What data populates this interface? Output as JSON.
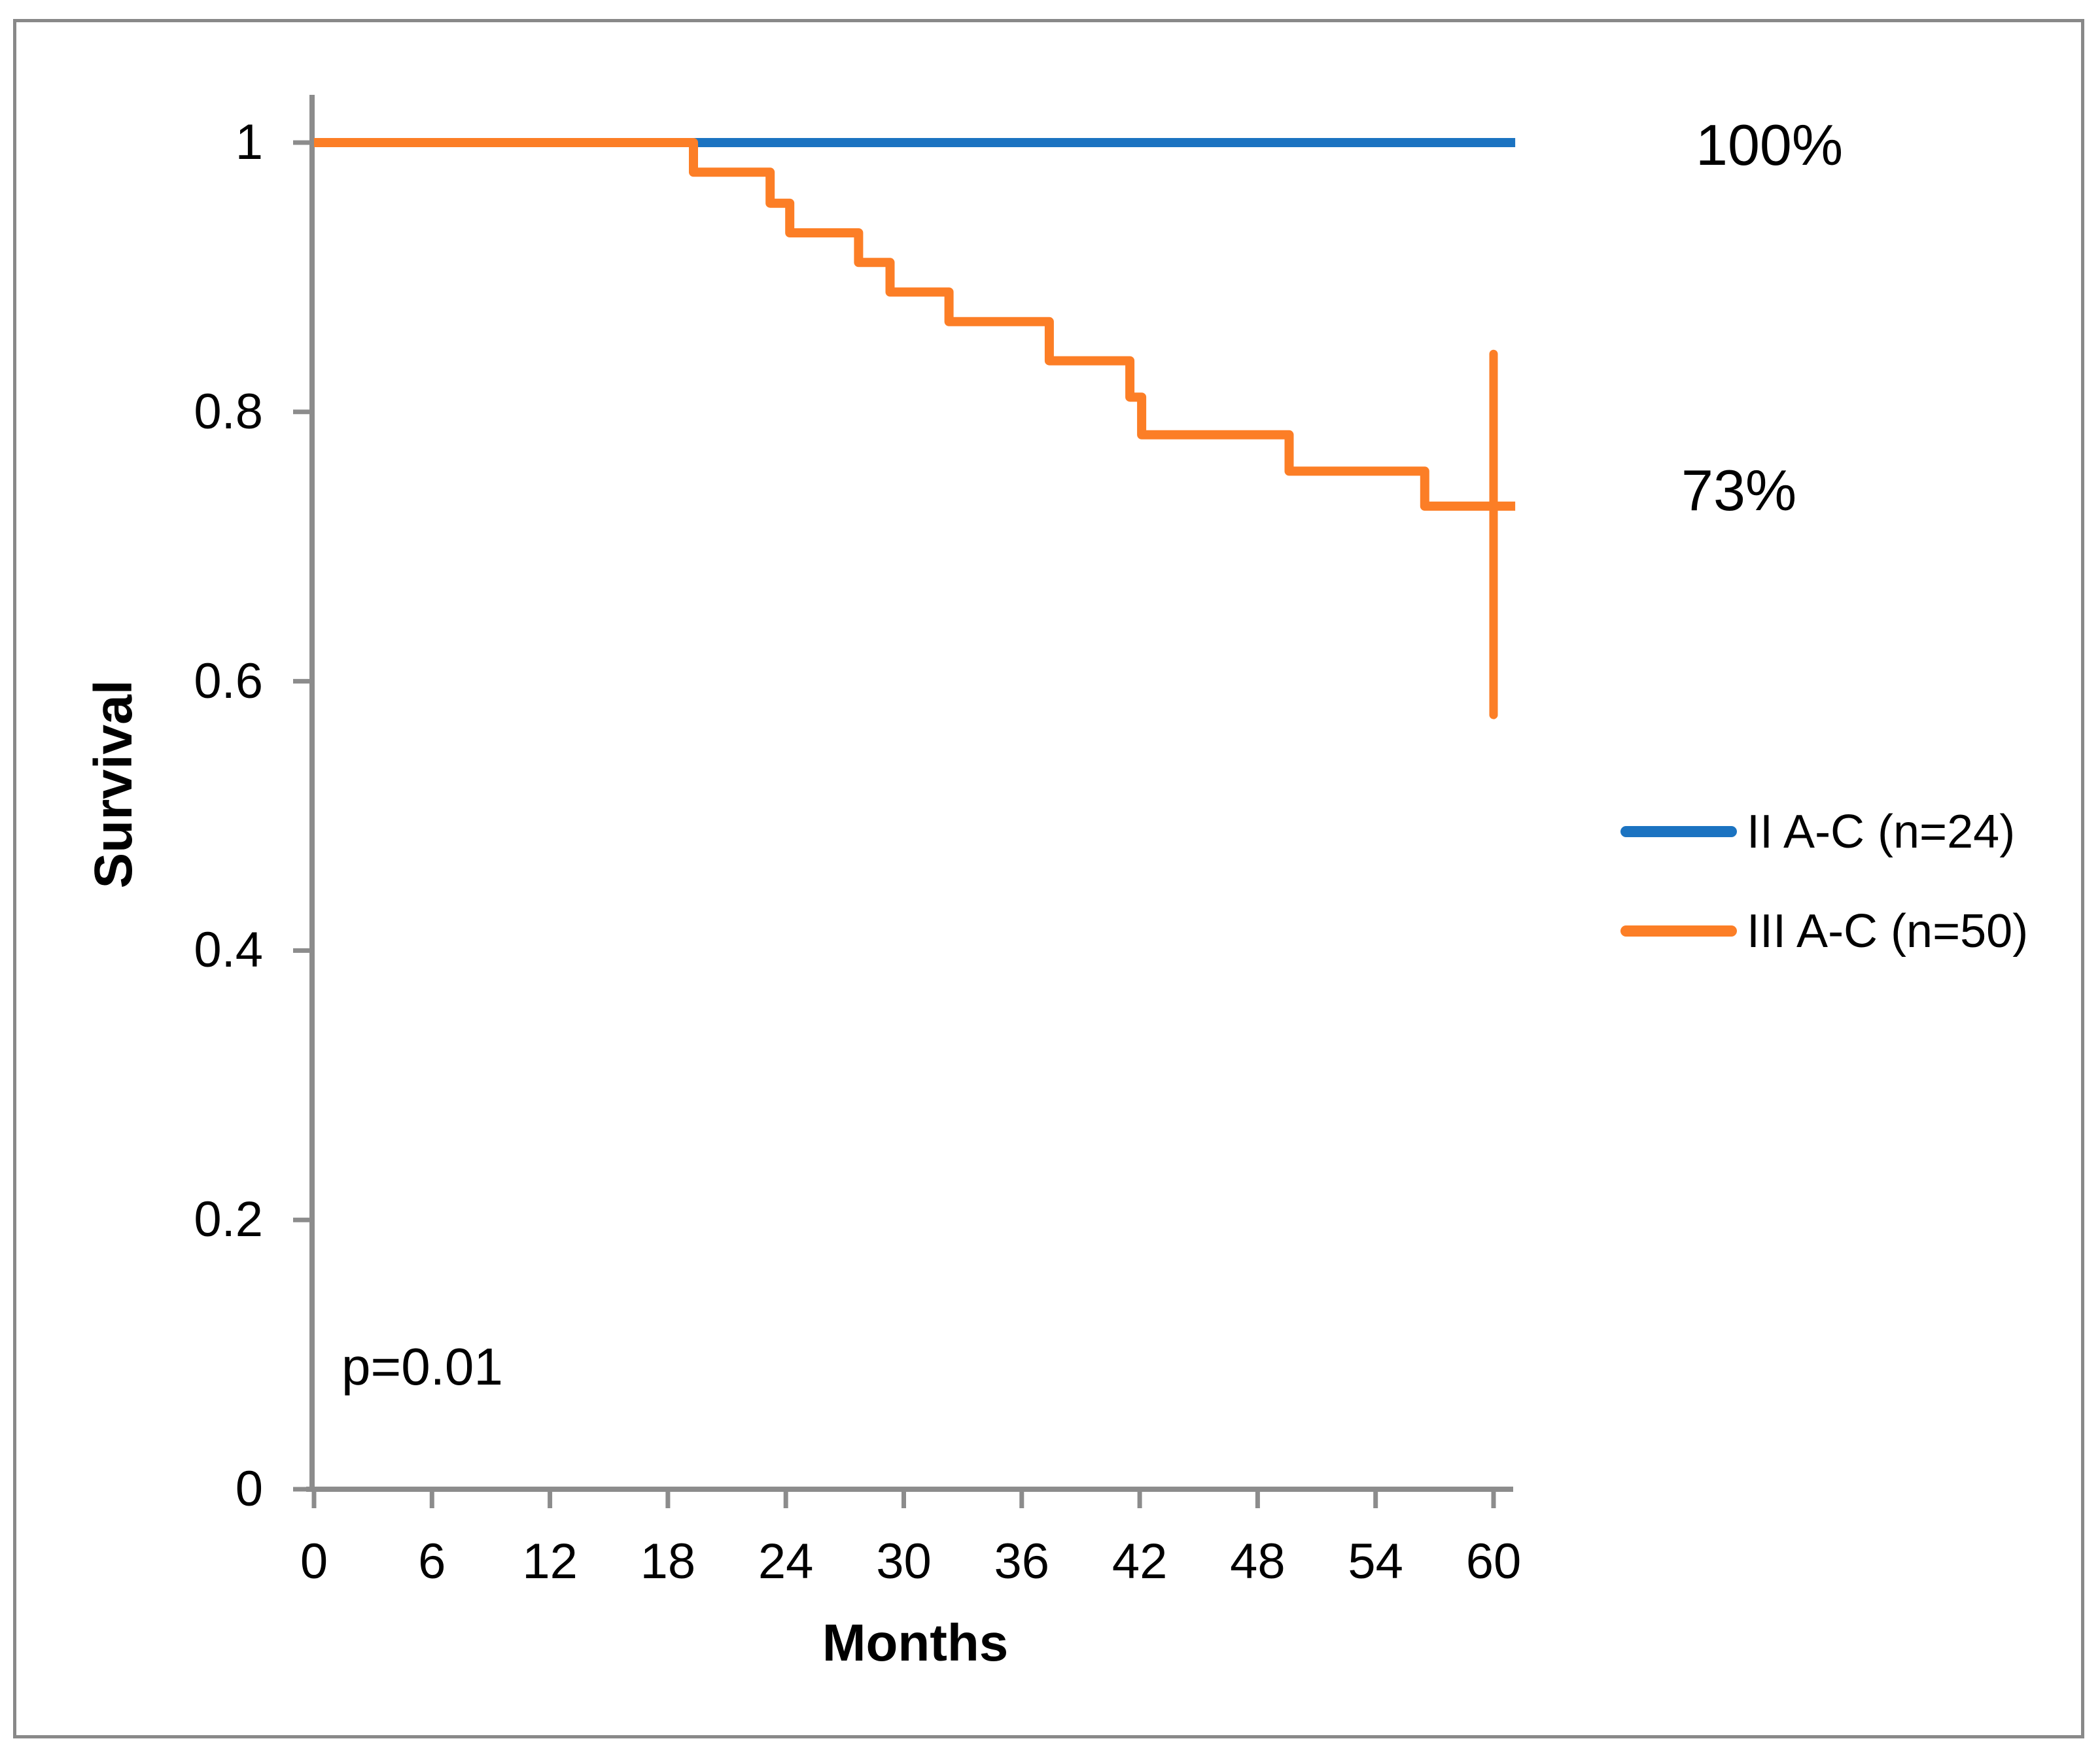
{
  "chart_data": {
    "type": "line",
    "subtype": "kaplan-meier-step",
    "title": "",
    "xlabel": "Months",
    "ylabel": "Survival",
    "p_value": "p=0.01",
    "x_axis": {
      "label": "Months",
      "ticks": [
        0,
        6,
        12,
        18,
        24,
        30,
        36,
        42,
        48,
        54,
        60
      ],
      "range": [
        0,
        61
      ]
    },
    "y_axis": {
      "label": "Survival",
      "ticks": [
        {
          "v": 0,
          "label": "0"
        },
        {
          "v": 0.2,
          "label": "0.2"
        },
        {
          "v": 0.4,
          "label": "0.4"
        },
        {
          "v": 0.6,
          "label": "0.6"
        },
        {
          "v": 0.8,
          "label": "0.8"
        },
        {
          "v": 1,
          "label": "1"
        }
      ],
      "range": [
        0,
        1.04
      ]
    },
    "grid": false,
    "legend_position": "right-middle",
    "series": [
      {
        "name": "II A-C (n=24)",
        "n": 24,
        "color": "#1B73C1",
        "final_label": "100%",
        "points": [
          [
            0,
            1.0
          ],
          [
            61.1,
            1.0
          ]
        ]
      },
      {
        "name": "III A-C (n=50)",
        "n": 50,
        "color": "#FC7E26",
        "final_label": "73%",
        "start": [
          0,
          1.0
        ],
        "drops": [
          [
            19.3,
            0.978
          ],
          [
            23.2,
            0.955
          ],
          [
            24.2,
            0.933
          ],
          [
            27.7,
            0.911
          ],
          [
            29.3,
            0.889
          ],
          [
            32.3,
            0.867
          ],
          [
            37.4,
            0.838
          ],
          [
            41.5,
            0.811
          ],
          [
            42.1,
            0.783
          ],
          [
            49.6,
            0.756
          ],
          [
            56.5,
            0.73
          ]
        ],
        "end_x": 61.1,
        "error_bar": {
          "x": 60,
          "y_low": 0.575,
          "y_high": 0.843
        }
      }
    ],
    "legend": {
      "entries": [
        {
          "label": "II A-C (n=24)",
          "color": "#1B73C1"
        },
        {
          "label": "III A-C (n=50)",
          "color": "#FC7E26"
        }
      ]
    },
    "annotations": [
      {
        "text": "100%",
        "x": 63,
        "y": 1.0
      },
      {
        "text": "73%",
        "x": 63,
        "y": 0.73
      },
      {
        "text": "p=0.01",
        "x": 3,
        "y": 0.09
      }
    ],
    "colors": {
      "axis": "#8C8C8C",
      "border": "#898989",
      "text": "#000000",
      "background": "#FFFFFF"
    }
  }
}
